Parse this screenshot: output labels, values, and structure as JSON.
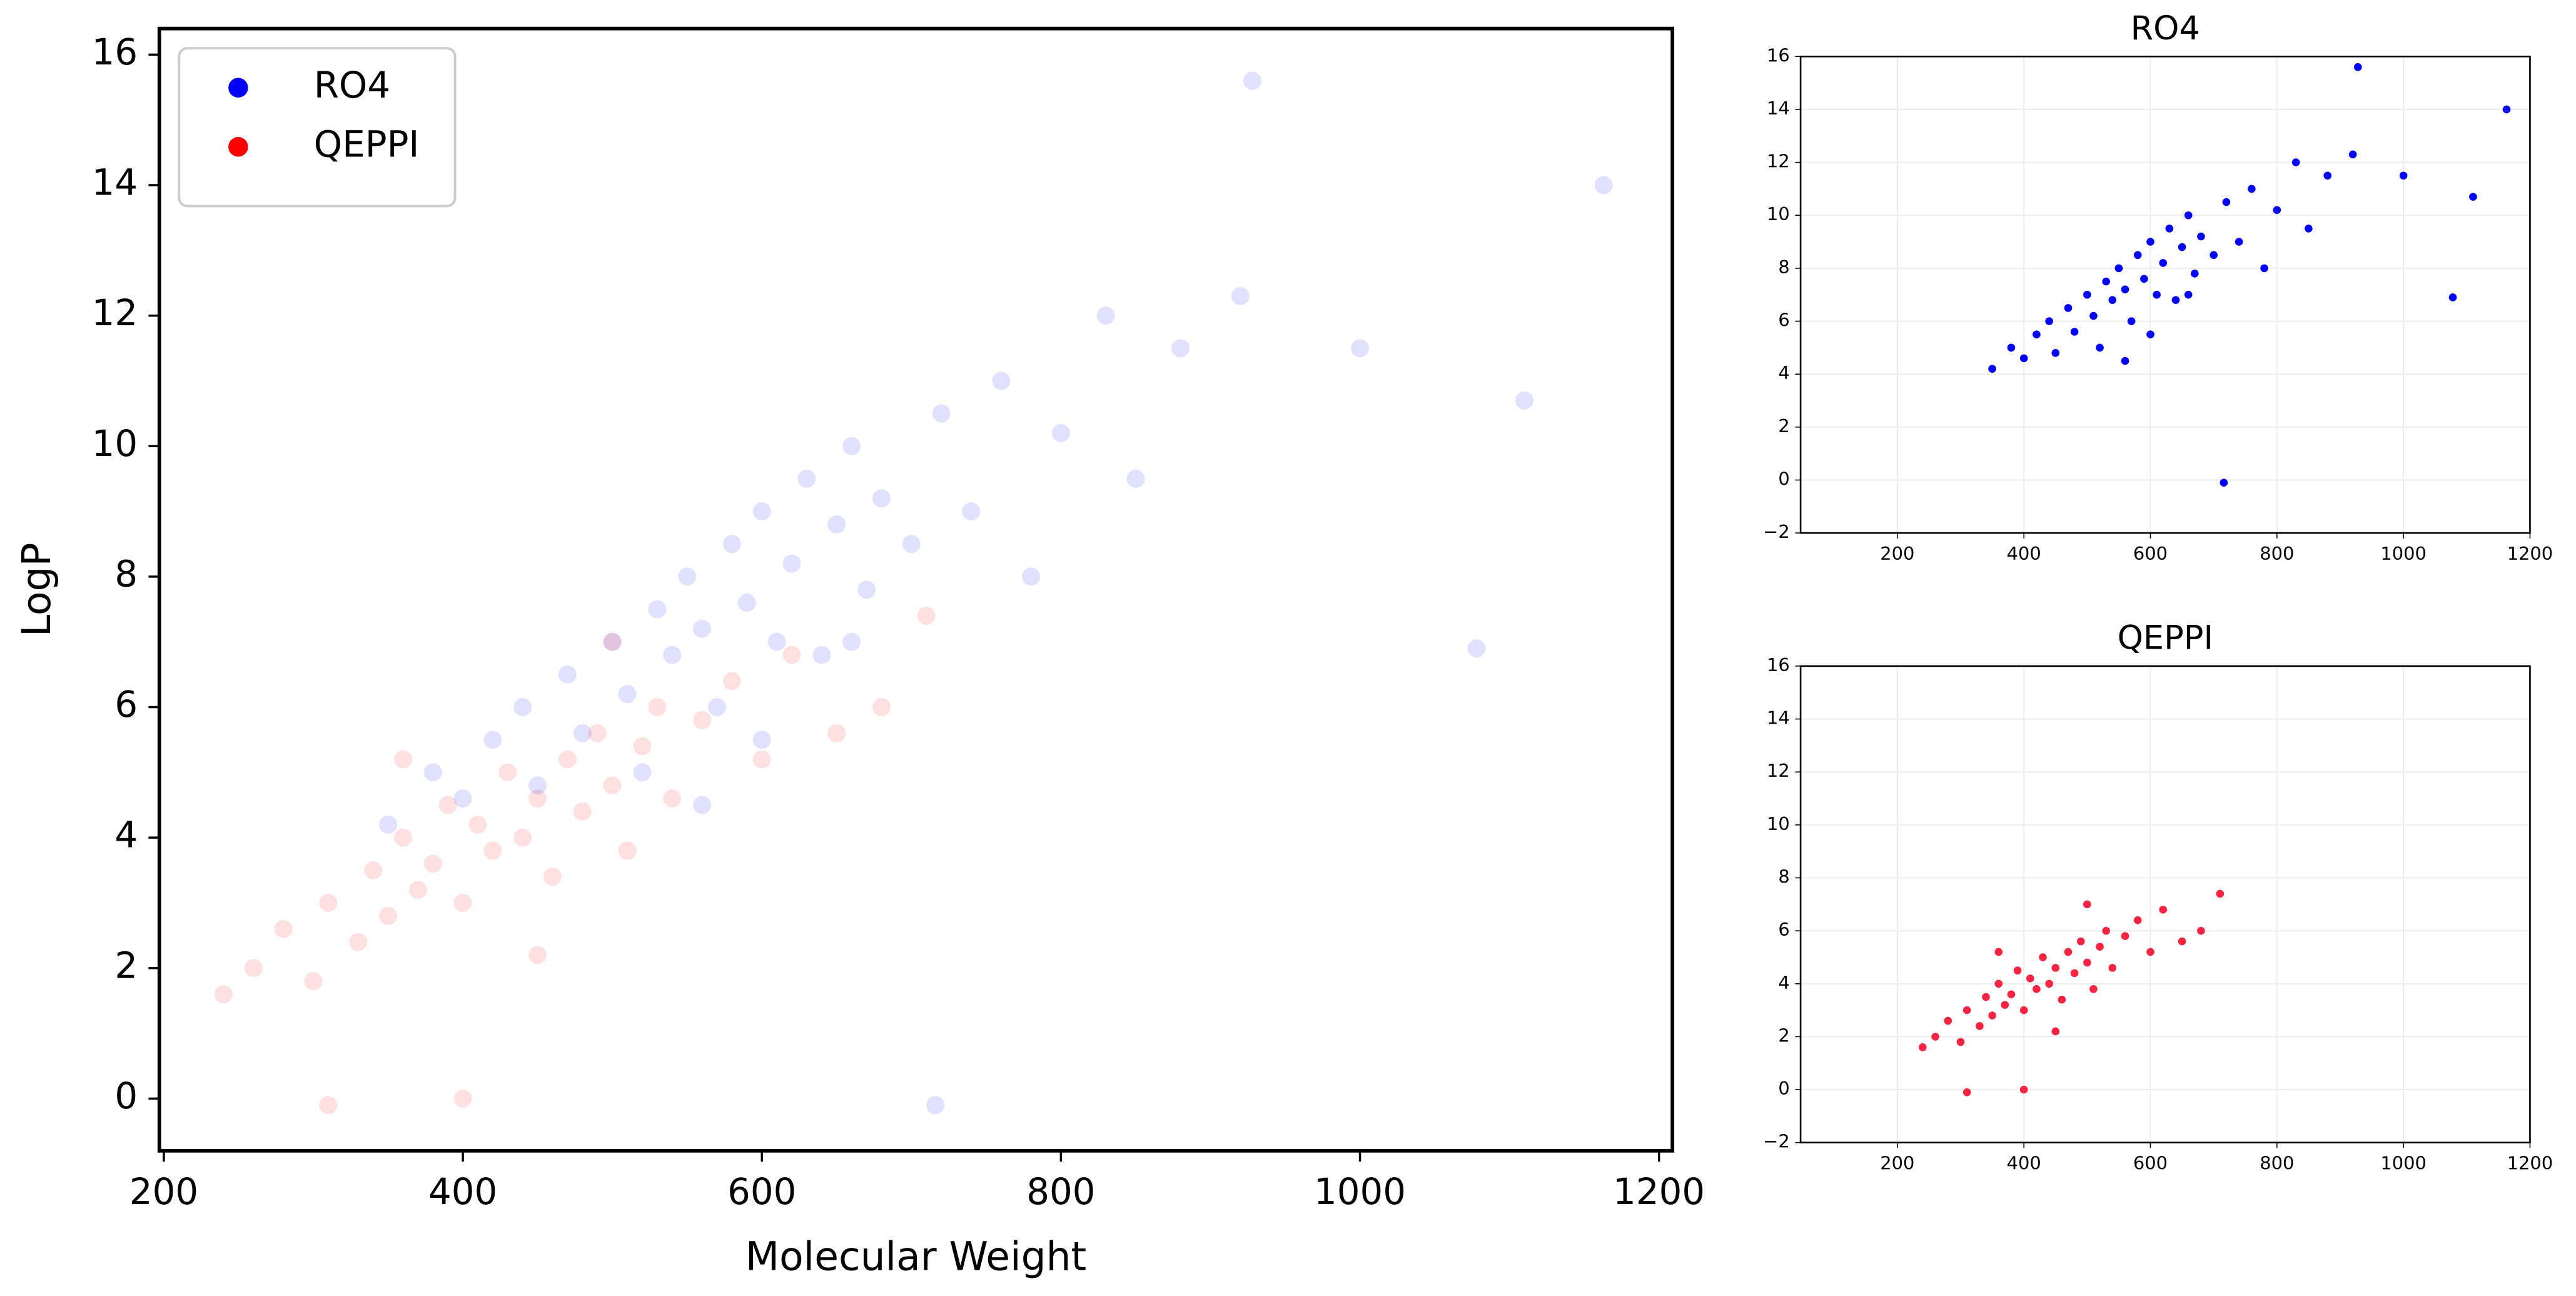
{
  "chart_data": [
    {
      "type": "scatter",
      "xlabel": "Molecular Weight",
      "ylabel": "LogP",
      "xlim": [
        197,
        1209
      ],
      "ylim": [
        -0.8,
        16.4
      ],
      "xticks": [
        200,
        400,
        600,
        800,
        1000,
        1200
      ],
      "yticks": [
        0,
        2,
        4,
        6,
        8,
        10,
        12,
        14,
        16
      ],
      "grid": false,
      "legend": "upper left",
      "opacity": 0.12,
      "series": [
        {
          "name": "RO4",
          "color": "#0000ff",
          "x": [
            350,
            380,
            400,
            420,
            440,
            450,
            470,
            480,
            500,
            510,
            520,
            530,
            540,
            550,
            560,
            570,
            580,
            590,
            600,
            610,
            620,
            630,
            640,
            650,
            660,
            670,
            680,
            700,
            720,
            740,
            760,
            780,
            800,
            830,
            850,
            880,
            920,
            928,
            1000,
            1078,
            1110,
            1163,
            716,
            600,
            560,
            660
          ],
          "values": [
            4.2,
            5.0,
            4.6,
            5.5,
            6.0,
            4.8,
            6.5,
            5.6,
            7.0,
            6.2,
            5.0,
            7.5,
            6.8,
            8.0,
            7.2,
            6.0,
            8.5,
            7.6,
            9.0,
            7.0,
            8.2,
            9.5,
            6.8,
            8.8,
            10.0,
            7.8,
            9.2,
            8.5,
            10.5,
            9.0,
            11.0,
            8.0,
            10.2,
            12.0,
            9.5,
            11.5,
            12.3,
            15.6,
            11.5,
            6.9,
            10.7,
            14.0,
            -0.1,
            5.5,
            4.5,
            7.0
          ]
        },
        {
          "name": "QEPPI",
          "color": "#ff0000",
          "x": [
            240,
            260,
            280,
            300,
            310,
            330,
            340,
            350,
            360,
            370,
            380,
            390,
            400,
            410,
            420,
            430,
            440,
            450,
            460,
            470,
            480,
            490,
            500,
            510,
            520,
            530,
            540,
            560,
            580,
            600,
            620,
            650,
            680,
            710,
            400,
            310,
            450,
            500,
            360
          ],
          "values": [
            1.6,
            2.0,
            2.6,
            1.8,
            3.0,
            2.4,
            3.5,
            2.8,
            4.0,
            3.2,
            3.6,
            4.5,
            3.0,
            4.2,
            3.8,
            5.0,
            4.0,
            4.6,
            3.4,
            5.2,
            4.4,
            5.6,
            4.8,
            3.8,
            5.4,
            6.0,
            4.6,
            5.8,
            6.4,
            5.2,
            6.8,
            5.6,
            6.0,
            7.4,
            0.0,
            -0.1,
            2.2,
            7.0,
            5.2
          ]
        }
      ]
    },
    {
      "type": "scatter",
      "title": "RO4",
      "xlim": [
        47,
        1200
      ],
      "ylim": [
        -2,
        16
      ],
      "xticks": [
        200,
        400,
        600,
        800,
        1000,
        1200
      ],
      "yticks": [
        {
          "value": -2,
          "label": "−2"
        },
        0,
        2,
        4,
        6,
        8,
        10,
        12,
        14,
        16
      ],
      "grid": true,
      "opacity": 1,
      "series": [
        {
          "color": "#0000ff",
          "x": [
            350,
            380,
            400,
            420,
            440,
            450,
            470,
            480,
            500,
            510,
            520,
            530,
            540,
            550,
            560,
            570,
            580,
            590,
            600,
            610,
            620,
            630,
            640,
            650,
            660,
            670,
            680,
            700,
            720,
            740,
            760,
            780,
            800,
            830,
            850,
            880,
            920,
            928,
            1000,
            1078,
            1110,
            1163,
            716,
            600,
            560,
            660
          ],
          "values": [
            4.2,
            5.0,
            4.6,
            5.5,
            6.0,
            4.8,
            6.5,
            5.6,
            7.0,
            6.2,
            5.0,
            7.5,
            6.8,
            8.0,
            7.2,
            6.0,
            8.5,
            7.6,
            9.0,
            7.0,
            8.2,
            9.5,
            6.8,
            8.8,
            10.0,
            7.8,
            9.2,
            8.5,
            10.5,
            9.0,
            11.0,
            8.0,
            10.2,
            12.0,
            9.5,
            11.5,
            12.3,
            15.6,
            11.5,
            6.9,
            10.7,
            14.0,
            -0.1,
            5.5,
            4.5,
            7.0
          ]
        }
      ]
    },
    {
      "type": "scatter",
      "title": "QEPPI",
      "xlim": [
        47,
        1200
      ],
      "ylim": [
        -2,
        16
      ],
      "xticks": [
        200,
        400,
        600,
        800,
        1000,
        1200
      ],
      "yticks": [
        {
          "value": -2,
          "label": "−2"
        },
        0,
        2,
        4,
        6,
        8,
        10,
        12,
        14,
        16
      ],
      "grid": true,
      "opacity": 1,
      "series": [
        {
          "color": "#fa2442",
          "x": [
            240,
            260,
            280,
            300,
            310,
            330,
            340,
            350,
            360,
            370,
            380,
            390,
            400,
            410,
            420,
            430,
            440,
            450,
            460,
            470,
            480,
            490,
            500,
            510,
            520,
            530,
            540,
            560,
            580,
            600,
            620,
            650,
            680,
            710,
            400,
            310,
            450,
            500,
            360
          ],
          "values": [
            1.6,
            2.0,
            2.6,
            1.8,
            3.0,
            2.4,
            3.5,
            2.8,
            4.0,
            3.2,
            3.6,
            4.5,
            3.0,
            4.2,
            3.8,
            5.0,
            4.0,
            4.6,
            3.4,
            5.2,
            4.4,
            5.6,
            4.8,
            3.8,
            5.4,
            6.0,
            4.6,
            5.8,
            6.4,
            5.2,
            6.8,
            5.6,
            6.0,
            7.4,
            0.0,
            -0.1,
            2.2,
            7.0,
            5.2
          ]
        }
      ]
    }
  ]
}
